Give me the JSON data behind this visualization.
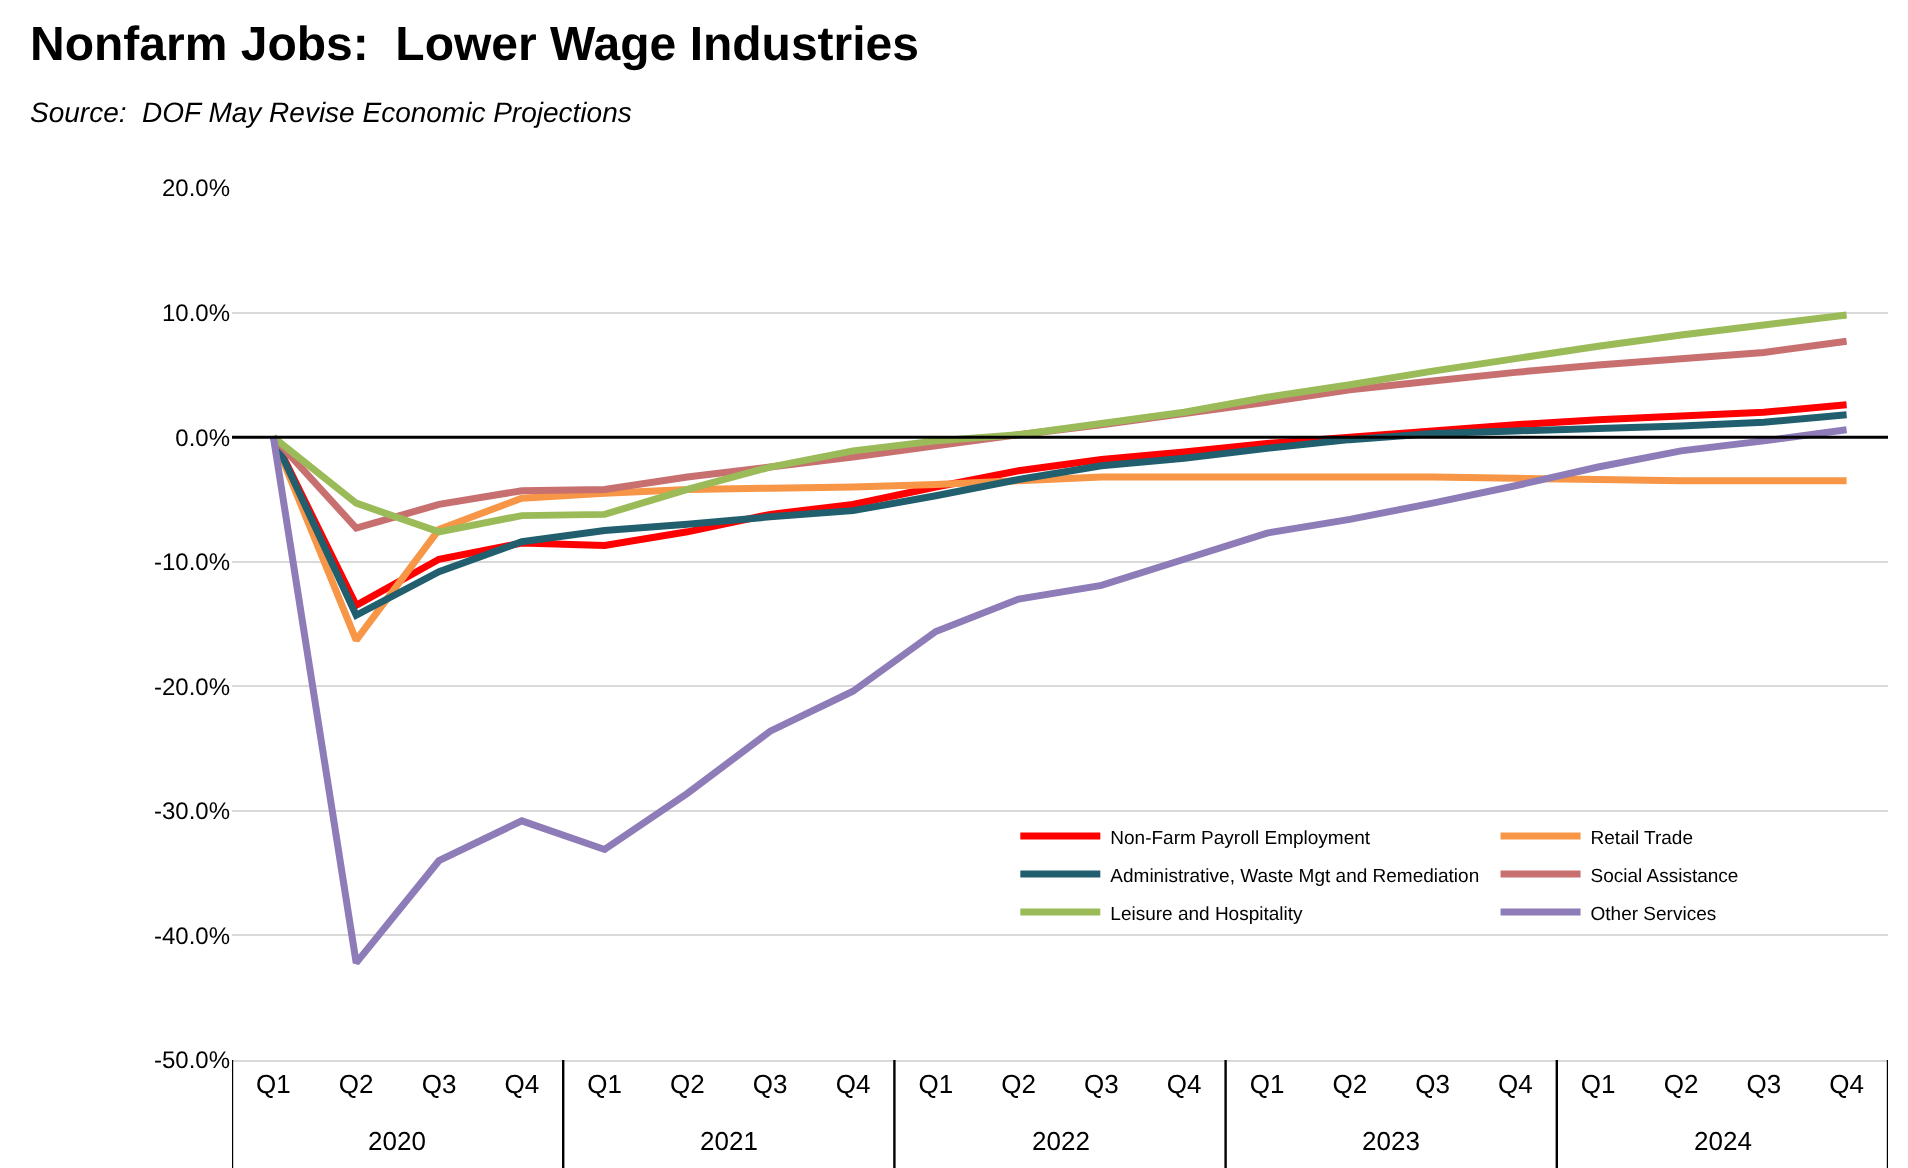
{
  "chart_data": {
    "type": "line",
    "title": "Nonfarm Jobs:  Lower Wage Industries",
    "subtitle": "Source:  DOF May Revise Economic Projections",
    "categories": [
      "Q1",
      "Q2",
      "Q3",
      "Q4",
      "Q1",
      "Q2",
      "Q3",
      "Q4",
      "Q1",
      "Q2",
      "Q3",
      "Q4",
      "Q1",
      "Q2",
      "Q3",
      "Q4",
      "Q1",
      "Q2",
      "Q3",
      "Q4"
    ],
    "annotations": [
      "2020",
      "2021",
      "2022",
      "2023",
      "2024"
    ],
    "ylim": [
      -50,
      20
    ],
    "yticks": [
      {
        "value": -50,
        "label": "-50.0%"
      },
      {
        "value": -40,
        "label": "-40.0%"
      },
      {
        "value": -30,
        "label": "-30.0%"
      },
      {
        "value": -20,
        "label": "-20.0%"
      },
      {
        "value": -10,
        "label": "-10.0%"
      },
      {
        "value": 0,
        "label": "0.0%"
      },
      {
        "value": 10,
        "label": "10.0%"
      },
      {
        "value": 20,
        "label": "20.0%"
      }
    ],
    "grid": "y",
    "legend": "bottom right",
    "marker": "none",
    "line_style": "solid",
    "ref_lines": [
      {
        "axis": "y",
        "value": 0,
        "color": "#000000"
      }
    ],
    "series": [
      {
        "name": "Non-Farm Payroll Employment",
        "color": "#ff0000",
        "values": [
          0,
          -13.5,
          -9.8,
          -8.5,
          -8.7,
          -7.6,
          -6.2,
          -5.4,
          -4.0,
          -2.7,
          -1.8,
          -1.2,
          -0.5,
          0.0,
          0.5,
          1.0,
          1.4,
          1.7,
          2.0,
          2.6
        ]
      },
      {
        "name": "Retail Trade",
        "color": "#f79646",
        "values": [
          0,
          -16.3,
          -7.4,
          -4.9,
          -4.5,
          -4.2,
          -4.1,
          -4.0,
          -3.8,
          -3.5,
          -3.2,
          -3.2,
          -3.2,
          -3.2,
          -3.2,
          -3.3,
          -3.4,
          -3.5,
          -3.5,
          -3.5
        ]
      },
      {
        "name": "Administrative, Waste Mgt and Remediation",
        "color": "#215f6e",
        "values": [
          0,
          -14.3,
          -10.8,
          -8.4,
          -7.5,
          -7.0,
          -6.4,
          -5.9,
          -4.7,
          -3.4,
          -2.3,
          -1.7,
          -0.9,
          -0.2,
          0.3,
          0.5,
          0.7,
          0.9,
          1.2,
          1.8
        ]
      },
      {
        "name": "Social Assistance",
        "color": "#c87070",
        "values": [
          0,
          -7.3,
          -5.4,
          -4.3,
          -4.2,
          -3.2,
          -2.4,
          -1.6,
          -0.7,
          0.2,
          1.0,
          1.9,
          2.8,
          3.8,
          4.5,
          5.2,
          5.8,
          6.3,
          6.8,
          7.7
        ]
      },
      {
        "name": "Leisure and Hospitality",
        "color": "#9bbb59",
        "values": [
          0,
          -5.3,
          -7.6,
          -6.3,
          -6.2,
          -4.2,
          -2.4,
          -1.1,
          -0.3,
          0.2,
          1.1,
          2.0,
          3.2,
          4.2,
          5.3,
          6.3,
          7.3,
          8.2,
          9.0,
          9.8
        ]
      },
      {
        "name": "Other Services",
        "color": "#8e7cb8",
        "values": [
          0,
          -42.2,
          -34.0,
          -30.8,
          -33.1,
          -28.6,
          -23.6,
          -20.4,
          -15.6,
          -13.0,
          -11.9,
          -9.8,
          -7.7,
          -6.6,
          -5.3,
          -3.9,
          -2.4,
          -1.1,
          -0.3,
          0.6
        ]
      }
    ]
  }
}
